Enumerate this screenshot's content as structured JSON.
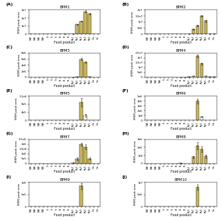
{
  "chart_data": [
    {
      "type": "bar",
      "title": "BPM1",
      "annotations": [
        "(A)"
      ],
      "x_label": "Food product",
      "y_label": "MRM peak area",
      "categories": [
        "WB",
        "WB",
        "WB",
        "WB",
        "S",
        "S",
        "S",
        "B",
        "B",
        "B",
        "Ry1",
        "Ry2",
        "Ry3",
        "Ry4",
        "Ry5",
        "Oa",
        "Oa"
      ],
      "values": [
        0,
        0,
        0,
        0,
        0,
        0,
        0,
        0,
        400000.0,
        0,
        500000.0,
        12000000.0,
        16000000.0,
        28000000.0,
        25000000.0,
        0,
        0
      ],
      "errors": [
        0,
        0,
        0,
        0,
        0,
        0,
        0,
        0,
        100000.0,
        0,
        200000.0,
        800000.0,
        600000.0,
        1200000.0,
        1000000.0,
        0,
        0
      ],
      "colors": [
        "white",
        "white",
        "white",
        "white",
        "white",
        "white",
        "white",
        "white",
        "white",
        "white",
        "#C8B560",
        "#C8B560",
        "#C8B560",
        "#C8B560",
        "#C8B560",
        "white",
        "white"
      ],
      "ylim": [
        0,
        30000000.0
      ],
      "yticks": [
        0,
        {
          "value": 10000000.0,
          "label": "1e7"
        },
        {
          "value": 20000000.0,
          "label": "2e7"
        },
        {
          "value": 30000000.0,
          "label": "3e7"
        }
      ]
    },
    {
      "type": "bar",
      "title": "BPM2",
      "annotations": [
        "(B)"
      ],
      "x_label": "Food product",
      "y_label": "MRM peak area",
      "categories": [
        "WB",
        "WB",
        "WB",
        "WB",
        "S",
        "S",
        "S",
        "B",
        "B",
        "B",
        "Ry1",
        "Ry2",
        "Ry3",
        "Ry4",
        "Ry5",
        "Oa",
        "Oa"
      ],
      "values": [
        0,
        0,
        0,
        0,
        0,
        0,
        0,
        0,
        0,
        0,
        300000.0,
        4000000.0,
        7000000.0,
        15000000.0,
        11000000.0,
        200000.0,
        100000.0
      ],
      "errors": [
        0,
        0,
        0,
        0,
        0,
        0,
        0,
        0,
        0,
        0,
        100000.0,
        300000.0,
        500000.0,
        700000.0,
        800000.0,
        100000.0,
        50000.0
      ],
      "colors": [
        "white",
        "white",
        "white",
        "white",
        "white",
        "white",
        "white",
        "white",
        "white",
        "white",
        "#C8B560",
        "#C8B560",
        "#C8B560",
        "#C8B560",
        "#C8B560",
        "white",
        "white"
      ],
      "ylim": [
        0,
        20000000.0
      ],
      "yticks": [
        0,
        {
          "value": 5000000.0,
          "label": "5e6"
        },
        {
          "value": 10000000.0,
          "label": "1e7"
        },
        {
          "value": 15000000.0,
          "label": "1.5e7"
        },
        {
          "value": 20000000.0,
          "label": "2e7"
        }
      ]
    },
    {
      "type": "bar",
      "title": "BPM3",
      "annotations": [
        "(C)"
      ],
      "x_label": "Food product",
      "y_label": "MRM peak area",
      "categories": [
        "WB",
        "WB",
        "WB",
        "WB",
        "S",
        "S",
        "S",
        "B",
        "B",
        "B",
        "Ry1",
        "Ry2",
        "Ry3",
        "Ry4",
        "Ry5",
        "Oa",
        "Oa"
      ],
      "values": [
        0,
        0,
        0,
        0,
        0,
        0,
        0,
        0,
        0,
        0,
        50000.0,
        200000.0,
        6000000.0,
        5000000.0,
        200000.0,
        0,
        0
      ],
      "errors": [
        0,
        0,
        0,
        0,
        0,
        0,
        0,
        0,
        0,
        0,
        20000.0,
        80000.0,
        400000.0,
        300000.0,
        50000.0,
        0,
        0
      ],
      "colors": [
        "white",
        "white",
        "white",
        "white",
        "white",
        "white",
        "white",
        "white",
        "white",
        "white",
        "white",
        "white",
        "#C8B560",
        "#C8B560",
        "white",
        "white",
        "white"
      ],
      "ylim": [
        0,
        8000000.0
      ],
      "yticks": [
        0,
        {
          "value": 2000000.0,
          "label": "2e6"
        },
        {
          "value": 4000000.0,
          "label": "4e6"
        },
        {
          "value": 6000000.0,
          "label": "6e6"
        },
        {
          "value": 8000000.0,
          "label": "8e6"
        }
      ]
    },
    {
      "type": "bar",
      "title": "BPM4",
      "annotations": [
        "(D)"
      ],
      "x_label": "Food product",
      "y_label": "MRM peak area",
      "categories": [
        "WB",
        "WB",
        "WB",
        "WB",
        "S",
        "S",
        "S",
        "B",
        "B",
        "B",
        "Ry1",
        "Ry2",
        "Ry3",
        "Ry4",
        "Ry5",
        "Oa",
        "Oa"
      ],
      "values": [
        0,
        0,
        0,
        0,
        0,
        0,
        0,
        0,
        50000.0,
        200000.0,
        300000.0,
        1500000.0,
        22000000.0,
        14000000.0,
        1500000.0,
        500000.0,
        400000.0
      ],
      "errors": [
        0,
        0,
        0,
        0,
        0,
        0,
        0,
        0,
        20000.0,
        80000.0,
        100000.0,
        200000.0,
        1500000.0,
        1000000.0,
        200000.0,
        100000.0,
        80000.0
      ],
      "colors": [
        "white",
        "white",
        "white",
        "white",
        "white",
        "white",
        "white",
        "white",
        "white",
        "white",
        "white",
        "white",
        "#C8B560",
        "#C8B560",
        "white",
        "white",
        "white"
      ],
      "ylim": [
        0,
        25000000.0
      ],
      "yticks": [
        0,
        {
          "value": 5000000.0,
          "label": "5e6"
        },
        {
          "value": 10000000.0,
          "label": "1e7"
        },
        {
          "value": 15000000.0,
          "label": "1.5e7"
        },
        {
          "value": 20000000.0,
          "label": "2e7"
        },
        {
          "value": 25000000.0,
          "label": "2.5e7"
        }
      ]
    },
    {
      "type": "bar",
      "title": "BPM5",
      "annotations": [
        "(E)"
      ],
      "x_label": "Food product",
      "y_label": "MRM peak area",
      "categories": [
        "WB",
        "WB",
        "WB",
        "WB",
        "S",
        "S",
        "S",
        "B",
        "B",
        "B",
        "Ry1",
        "Ry2",
        "Ry3",
        "Ry4",
        "Ry5",
        "Oa",
        "Oa"
      ],
      "values": [
        0,
        0,
        0,
        0,
        0,
        0,
        0,
        0,
        0,
        0,
        0,
        0,
        900000.0,
        250000.0,
        0,
        0,
        0
      ],
      "errors": [
        0,
        0,
        0,
        0,
        0,
        0,
        0,
        0,
        0,
        0,
        0,
        0,
        200000.0,
        80000.0,
        0,
        0,
        0
      ],
      "colors": [
        "white",
        "white",
        "white",
        "white",
        "white",
        "white",
        "white",
        "white",
        "white",
        "white",
        "white",
        "white",
        "#C8B560",
        "white",
        "white",
        "white",
        "white"
      ],
      "ylim": [
        0,
        1200000.0
      ],
      "yticks": [
        0,
        {
          "value": 400000.0,
          "label": "4e5"
        },
        {
          "value": 800000.0,
          "label": "8e5"
        },
        {
          "value": 1200000.0,
          "label": "1.2e6"
        }
      ]
    },
    {
      "type": "bar",
      "title": "BPM6",
      "annotations": [
        "(F)"
      ],
      "x_label": "Food product",
      "y_label": "MRM peak area",
      "categories": [
        "WB",
        "WB",
        "WB",
        "WB",
        "S",
        "S",
        "S",
        "B",
        "B",
        "B",
        "Ry1",
        "Ry2",
        "Ry3",
        "Ry4",
        "Ry5",
        "Oa",
        "Oa"
      ],
      "values": [
        0,
        0,
        0,
        0,
        0,
        0,
        0,
        0,
        0,
        0,
        0,
        0,
        4000000,
        700000,
        0,
        0,
        0
      ],
      "errors": [
        0,
        0,
        0,
        0,
        0,
        0,
        0,
        0,
        0,
        0,
        0,
        0,
        500000,
        150000,
        0,
        0,
        0
      ],
      "colors": [
        "white",
        "white",
        "white",
        "white",
        "white",
        "white",
        "white",
        "white",
        "white",
        "white",
        "white",
        "white",
        "#C8B560",
        "white",
        "white",
        "white",
        "white"
      ],
      "ylim": [
        0,
        5000000
      ],
      "yticks": [
        0,
        {
          "value": 1000000,
          "label": "1e6"
        },
        {
          "value": 2000000,
          "label": "2e6"
        },
        {
          "value": 3000000,
          "label": "3e6"
        },
        {
          "value": 4000000,
          "label": "4e6"
        },
        {
          "value": 5000000,
          "label": "5e6"
        }
      ]
    },
    {
      "type": "bar",
      "title": "BPM7",
      "annotations": [
        "(G)"
      ],
      "x_label": "Food product",
      "y_label": "MRM peak area",
      "categories": [
        "WB",
        "WB",
        "WB",
        "WB",
        "S",
        "S",
        "S",
        "B",
        "B",
        "B",
        "Ry1",
        "Ry2",
        "Ry3",
        "Ry4",
        "Ry5",
        "Oa",
        "Oa"
      ],
      "values": [
        0,
        0,
        0,
        0,
        0,
        0,
        0,
        0,
        0,
        0,
        80000.0,
        500000.0,
        2000000.0,
        1700000.0,
        500000.0,
        0,
        0
      ],
      "errors": [
        0,
        0,
        0,
        0,
        0,
        0,
        0,
        0,
        0,
        0,
        30000.0,
        150000.0,
        150000.0,
        250000.0,
        100000.0,
        0,
        0
      ],
      "colors": [
        "white",
        "white",
        "white",
        "white",
        "white",
        "white",
        "white",
        "white",
        "white",
        "white",
        "white",
        "#C8B560",
        "#C8B560",
        "#C8B560",
        "#C8B560",
        "white",
        "white"
      ],
      "ylim": [
        0,
        2500000.0
      ],
      "yticks": [
        0,
        {
          "value": 500000.0,
          "label": "5e5"
        },
        {
          "value": 1000000.0,
          "label": "1e6"
        },
        {
          "value": 1500000.0,
          "label": "1.5e6"
        },
        {
          "value": 2000000.0,
          "label": "2e6"
        },
        {
          "value": 2500000.0,
          "label": "2.5e6"
        }
      ]
    },
    {
      "type": "bar",
      "title": "BPM8",
      "annotations": [
        "(H)"
      ],
      "x_label": "Food product",
      "y_label": "MRM peak area",
      "categories": [
        "WB",
        "WB",
        "WB",
        "WB",
        "S",
        "S",
        "S",
        "B",
        "B",
        "B",
        "Ry1",
        "Ry2",
        "Ry3",
        "Ry4",
        "Ry5",
        "Oa",
        "Oa"
      ],
      "values": [
        0,
        0,
        0,
        0,
        0,
        0,
        0,
        0,
        30000.0,
        0,
        0,
        800000.0,
        2200000.0,
        1800000.0,
        900000.0,
        0,
        0
      ],
      "errors": [
        0,
        0,
        0,
        0,
        0,
        0,
        0,
        0,
        10000.0,
        0,
        0,
        150000.0,
        400000.0,
        350000.0,
        200000.0,
        0,
        0
      ],
      "colors": [
        "white",
        "white",
        "white",
        "white",
        "white",
        "white",
        "white",
        "white",
        "white",
        "white",
        "white",
        "#C8B560",
        "#C8B560",
        "#C8B560",
        "#C8B560",
        "white",
        "white"
      ],
      "ylim": [
        0,
        3000000
      ],
      "yticks": [
        0,
        {
          "value": 1000000,
          "label": "1e6"
        },
        {
          "value": 2000000,
          "label": "2e6"
        },
        {
          "value": 3000000,
          "label": "3e6"
        }
      ]
    },
    {
      "type": "bar",
      "title": "BPM9",
      "annotations": [
        "(I)"
      ],
      "x_label": "Food product",
      "y_label": "MRM peak area",
      "categories": [
        "WB",
        "WB",
        "WB",
        "WB",
        "S",
        "S",
        "S",
        "B",
        "B",
        "B",
        "Ry1",
        "Ry2",
        "Ry3",
        "Ry4",
        "Ry5",
        "Oa",
        "Oa"
      ],
      "values": [
        0,
        0,
        0,
        0,
        0,
        0,
        0,
        0,
        0,
        0,
        0,
        0,
        850000,
        0,
        0,
        0,
        0
      ],
      "errors": [
        0,
        0,
        0,
        0,
        0,
        0,
        0,
        0,
        0,
        0,
        0,
        0,
        130000,
        0,
        0,
        0,
        0
      ],
      "colors": [
        "white",
        "white",
        "white",
        "white",
        "white",
        "white",
        "white",
        "white",
        "white",
        "white",
        "white",
        "white",
        "#C8B560",
        "white",
        "white",
        "white",
        "white"
      ],
      "ylim": [
        0,
        1000000
      ],
      "yticks": [
        0,
        {
          "value": 500000,
          "label": "5e5"
        },
        {
          "value": 1000000,
          "label": "1e6"
        }
      ]
    },
    {
      "type": "bar",
      "title": "BPM10",
      "annotations": [
        "(J)"
      ],
      "x_label": "Food product",
      "y_label": "MRM peak area",
      "categories": [
        "WB",
        "WB",
        "WB",
        "WB",
        "S",
        "S",
        "S",
        "B",
        "B",
        "B",
        "Ry1",
        "Ry2",
        "Ry3",
        "Ry4",
        "Ry5",
        "Oa",
        "Oa"
      ],
      "values": [
        0,
        0,
        0,
        0,
        0,
        0,
        0,
        0,
        0,
        0,
        0,
        0,
        8000000.0,
        0,
        0,
        0,
        0
      ],
      "errors": [
        0,
        0,
        0,
        0,
        0,
        0,
        0,
        0,
        0,
        0,
        0,
        0,
        1200000.0,
        0,
        0,
        0,
        0
      ],
      "colors": [
        "white",
        "white",
        "white",
        "white",
        "white",
        "white",
        "white",
        "white",
        "white",
        "white",
        "white",
        "white",
        "#C8B560",
        "white",
        "white",
        "white",
        "white"
      ],
      "ylim": [
        0,
        10000000.0
      ],
      "yticks": [
        0,
        {
          "value": 5000000.0,
          "label": "5e6"
        },
        {
          "value": 10000000.0,
          "label": "1e7"
        }
      ]
    }
  ]
}
